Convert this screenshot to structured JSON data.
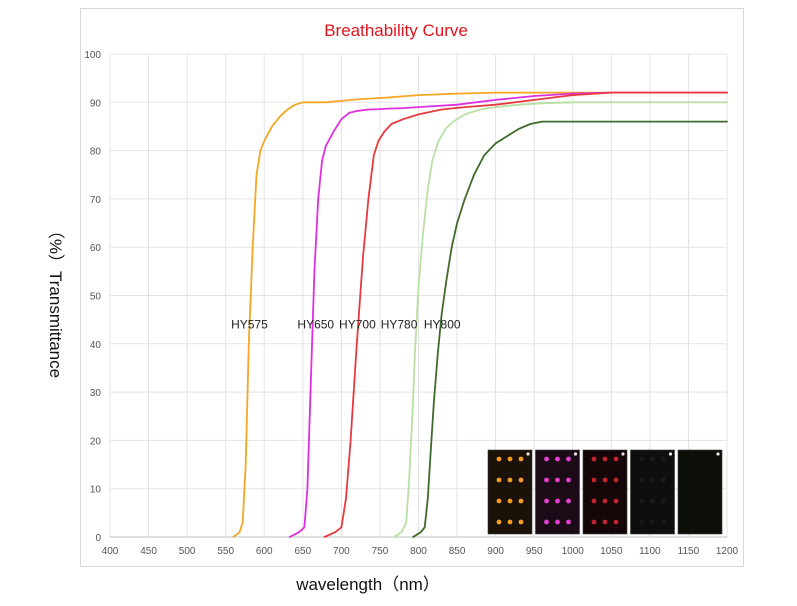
{
  "chart_data": {
    "type": "line",
    "title": "Breathability Curve",
    "title_color": "#e0151b",
    "xlabel": "wavelength（nm）",
    "ylabel": "（%）Transmittance",
    "xlim": [
      400,
      1200
    ],
    "ylim": [
      0,
      100
    ],
    "xticks": [
      "400",
      "450",
      "500",
      "550",
      "600",
      "650",
      "700",
      "750",
      "800",
      "850",
      "900",
      "950",
      "1000",
      "1050",
      "1100",
      "1150",
      "1200"
    ],
    "yticks": [
      "0",
      "10",
      "20",
      "30",
      "40",
      "50",
      "60",
      "70",
      "80",
      "90",
      "100"
    ],
    "grid": true,
    "series": [
      {
        "name": "HY575",
        "color": "#f5a623",
        "label_at": [
          557,
          44
        ],
        "x": [
          560,
          568,
          572,
          576,
          580,
          585,
          590,
          595,
          600,
          610,
          620,
          630,
          640,
          650,
          660,
          680,
          700,
          720,
          760,
          800,
          850,
          900,
          950,
          1000,
          1050,
          1100,
          1150,
          1200
        ],
        "y": [
          0,
          1,
          3,
          15,
          40,
          60,
          75,
          80,
          82,
          85,
          87,
          88.5,
          89.5,
          90,
          90,
          90,
          90.3,
          90.6,
          91,
          91.5,
          91.8,
          92,
          92,
          92,
          92,
          92,
          92,
          92
        ]
      },
      {
        "name": "HY650",
        "color": "#de2fe0",
        "label_at": [
          643,
          44
        ],
        "x": [
          633,
          645,
          652,
          656,
          660,
          665,
          670,
          675,
          680,
          690,
          700,
          710,
          720,
          735,
          750,
          760,
          780,
          800,
          850,
          900,
          950,
          1000,
          1050,
          1100,
          1150,
          1200
        ],
        "y": [
          0,
          1,
          2,
          10,
          30,
          55,
          70,
          78,
          81,
          84,
          86.5,
          87.8,
          88.2,
          88.5,
          88.6,
          88.7,
          88.8,
          89,
          89.5,
          90.5,
          91.3,
          91.8,
          92,
          92,
          92,
          92
        ]
      },
      {
        "name": "HY700",
        "color": "#e8393f",
        "label_at": [
          697,
          44
        ],
        "x": [
          678,
          692,
          700,
          706,
          712,
          720,
          728,
          735,
          742,
          748,
          756,
          765,
          780,
          800,
          830,
          860,
          900,
          950,
          1000,
          1050,
          1100,
          1150,
          1200
        ],
        "y": [
          0,
          1,
          2,
          8,
          20,
          40,
          58,
          70,
          79,
          82,
          84,
          85.5,
          86.5,
          87.5,
          88.5,
          89,
          89.5,
          90.5,
          91.5,
          92,
          92,
          92,
          92
        ]
      },
      {
        "name": "HY780",
        "color": "#b9e0a3",
        "label_at": [
          751,
          44
        ],
        "x": [
          768,
          778,
          784,
          788,
          792,
          796,
          800,
          806,
          812,
          818,
          826,
          835,
          845,
          860,
          880,
          900,
          930,
          960,
          1000,
          1050,
          1100,
          1150,
          1200
        ],
        "y": [
          0,
          1,
          3,
          12,
          25,
          40,
          52,
          63,
          72,
          78,
          82,
          84.5,
          86,
          87.5,
          88.5,
          89,
          89.5,
          89.8,
          90,
          90,
          90,
          90,
          90
        ]
      },
      {
        "name": "HY800",
        "color": "#3f6a2a",
        "label_at": [
          807,
          44
        ],
        "x": [
          793,
          803,
          808,
          812,
          816,
          820,
          825,
          830,
          836,
          843,
          850,
          860,
          872,
          885,
          900,
          915,
          930,
          945,
          960,
          980,
          1000,
          1050,
          1100,
          1150,
          1200
        ],
        "y": [
          0,
          1,
          2,
          8,
          18,
          28,
          38,
          46,
          53,
          60,
          65,
          70,
          75,
          79,
          81.5,
          83,
          84.5,
          85.5,
          86,
          86,
          86,
          86,
          86,
          86,
          86
        ]
      }
    ]
  },
  "inset_images": [
    {
      "name": "inset-photo-hy575",
      "background": "#1a1108",
      "dot_color": "#f29b2a",
      "visibility": 1.0
    },
    {
      "name": "inset-photo-hy650",
      "background": "#1a0b16",
      "dot_color": "#e43fcf",
      "visibility": 1.0
    },
    {
      "name": "inset-photo-hy700",
      "background": "#150707",
      "dot_color": "#e0283a",
      "visibility": 0.85
    },
    {
      "name": "inset-photo-hy780",
      "background": "#0e0e0e",
      "dot_color": "#3b3b3b",
      "visibility": 0.25
    },
    {
      "name": "inset-photo-hy800",
      "background": "#0b0f07",
      "dot_color": "#0b0f07",
      "visibility": 0.0
    }
  ]
}
